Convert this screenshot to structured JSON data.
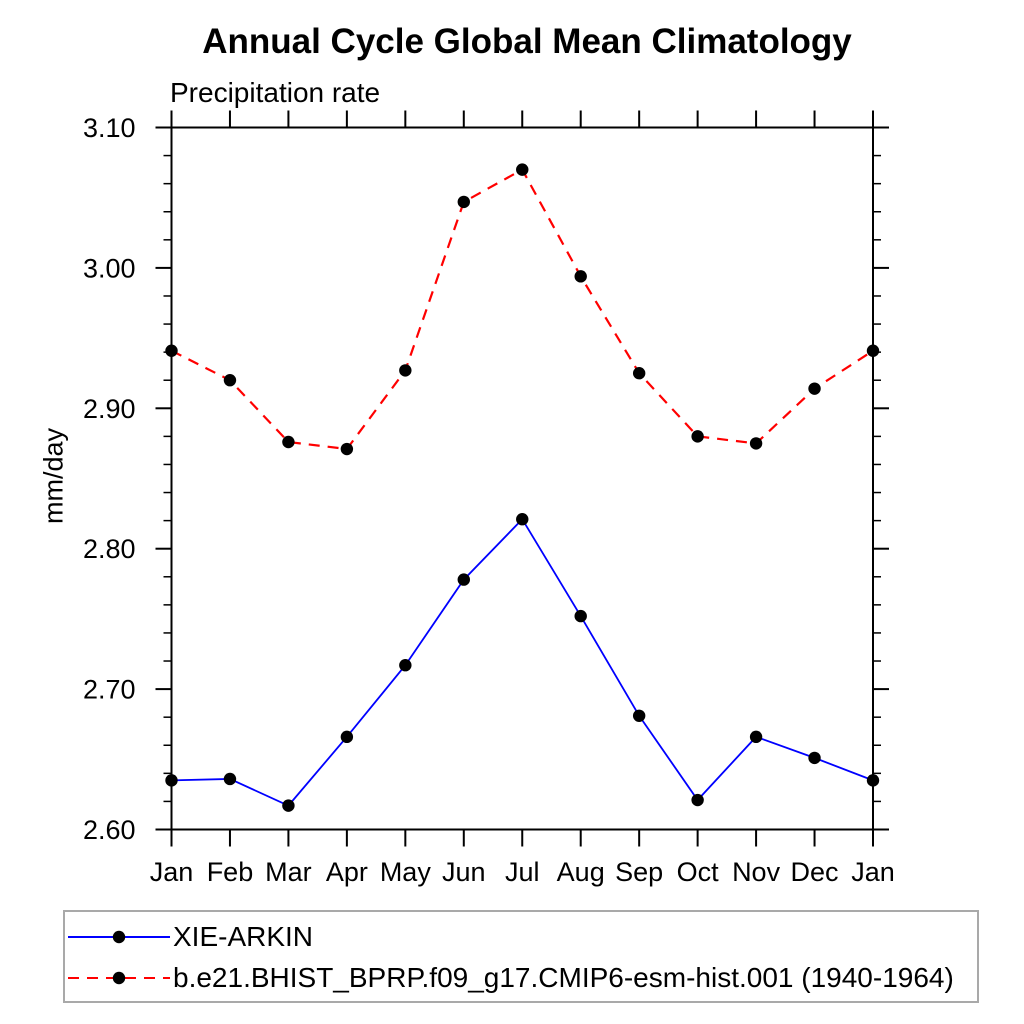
{
  "chart_data": {
    "type": "line",
    "title": "Annual Cycle Global Mean Climatology",
    "subtitle": "Precipitation rate",
    "ylabel": "mm/day",
    "categories": [
      "Jan",
      "Feb",
      "Mar",
      "Apr",
      "May",
      "Jun",
      "Jul",
      "Aug",
      "Sep",
      "Oct",
      "Nov",
      "Dec",
      "Jan"
    ],
    "series": [
      {
        "name": "XIE-ARKIN",
        "color": "#0000ff",
        "line_style": "solid",
        "marker": "filled-circle",
        "marker_color": "#000000",
        "values": [
          2.635,
          2.636,
          2.617,
          2.666,
          2.717,
          2.778,
          2.821,
          2.752,
          2.681,
          2.621,
          2.666,
          2.651,
          2.635
        ]
      },
      {
        "name": "b.e21.BHIST_BPRP.f09_g17.CMIP6-esm-hist.001 (1940-1964)",
        "color": "#ff0000",
        "line_style": "dashed",
        "marker": "filled-circle",
        "marker_color": "#000000",
        "values": [
          2.941,
          2.92,
          2.876,
          2.871,
          2.927,
          3.047,
          3.07,
          2.994,
          2.925,
          2.88,
          2.875,
          2.914,
          2.941
        ]
      }
    ],
    "ylim": [
      2.6,
      3.1
    ],
    "y_tick_labels": [
      "2.60",
      "2.70",
      "2.80",
      "2.90",
      "3.00",
      "3.10"
    ],
    "y_major_step": 0.1,
    "y_minor_step": 0.02,
    "grid": false,
    "legend_position": "bottom-left-box",
    "axis_color": "#000000",
    "legend_border_color": "#a9a9a9"
  }
}
